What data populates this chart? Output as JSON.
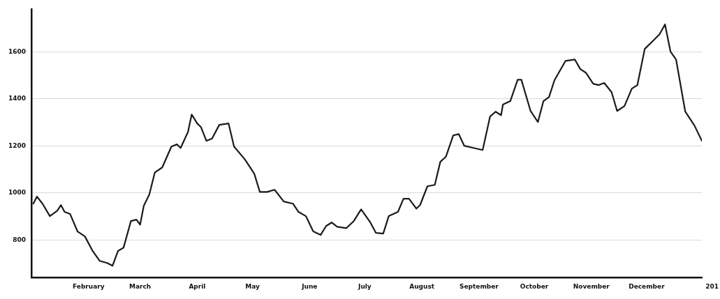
{
  "chart_data": {
    "type": "line",
    "x": [
      "--01-02",
      "--01-04",
      "--01-07",
      "--01-11",
      "--01-15",
      "--01-17",
      "--01-19",
      "--01-22",
      "--01-26",
      "--01-30",
      "--02-03",
      "--02-07",
      "--02-11",
      "--02-14",
      "--02-17",
      "--02-20",
      "--02-24",
      "--02-27",
      "--03-01",
      "--03-03",
      "--03-06",
      "--03-09",
      "--03-13",
      "--03-18",
      "--03-21",
      "--03-23",
      "--03-27",
      "--03-29",
      "--04-01",
      "--04-03",
      "--04-06",
      "--04-09",
      "--04-13",
      "--04-18",
      "--04-21",
      "--04-27",
      "--05-02",
      "--05-05",
      "--05-09",
      "--05-13",
      "--05-18",
      "--05-23",
      "--05-26",
      "--05-30",
      "--06-03",
      "--06-07",
      "--06-10",
      "--06-13",
      "--06-16",
      "--06-21",
      "--06-25",
      "--06-29",
      "--07-04",
      "--07-07",
      "--07-11",
      "--07-14",
      "--07-19",
      "--07-22",
      "--07-25",
      "--07-29",
      "--07-31",
      "--08-04",
      "--08-08",
      "--08-11",
      "--08-14",
      "--08-18",
      "--08-21",
      "--08-24",
      "--08-29",
      "--09-03",
      "--09-07",
      "--09-10",
      "--09-13",
      "--09-14",
      "--09-18",
      "--09-22",
      "--09-24",
      "--09-29",
      "--10-03",
      "--10-06",
      "--10-09",
      "--10-12",
      "--10-18",
      "--10-23",
      "--10-26",
      "--10-29",
      "--11-02",
      "--11-05",
      "--11-08",
      "--11-12",
      "--11-15",
      "--11-19",
      "--11-23",
      "--11-26",
      "--11-30",
      "--12-05",
      "--12-08",
      "--12-11",
      "--12-14",
      "--12-17",
      "--12-22",
      "--12-27",
      "--12-31"
    ],
    "series": [
      {
        "color": "#1a1a1a",
        "values": [
          954,
          984,
          954,
          901,
          924,
          948,
          919,
          910,
          836,
          815,
          756,
          711,
          702,
          690,
          753,
          767,
          880,
          886,
          865,
          945,
          993,
          1087,
          1108,
          1197,
          1206,
          1191,
          1259,
          1333,
          1295,
          1280,
          1221,
          1230,
          1289,
          1295,
          1197,
          1141,
          1081,
          1004,
          1004,
          1013,
          963,
          954,
          919,
          901,
          836,
          821,
          859,
          874,
          856,
          850,
          880,
          930,
          874,
          830,
          827,
          901,
          919,
          975,
          975,
          933,
          948,
          1028,
          1034,
          1132,
          1153,
          1244,
          1250,
          1200,
          1191,
          1182,
          1324,
          1345,
          1330,
          1375,
          1390,
          1481,
          1481,
          1348,
          1301,
          1390,
          1407,
          1479,
          1561,
          1567,
          1526,
          1511,
          1464,
          1458,
          1467,
          1428,
          1348,
          1369,
          1443,
          1458,
          1612,
          1650,
          1674,
          1716,
          1600,
          1567,
          1345,
          1286,
          1221
        ]
      }
    ],
    "xlim": [
      "--01-01",
      "--12-31"
    ],
    "xticks": [
      {
        "value": "--02-01",
        "label": "February"
      },
      {
        "value": "--03-01",
        "label": "March"
      },
      {
        "value": "--04-01",
        "label": "April"
      },
      {
        "value": "--05-01",
        "label": "May"
      },
      {
        "value": "--06-01",
        "label": "June"
      },
      {
        "value": "--07-01",
        "label": "July"
      },
      {
        "value": "--08-01",
        "label": "August"
      },
      {
        "value": "--09-01",
        "label": "September"
      },
      {
        "value": "--10-01",
        "label": "October"
      },
      {
        "value": "--11-01",
        "label": "November"
      },
      {
        "value": "--12-01",
        "label": "December"
      }
    ],
    "ylim": [
      640,
      1780
    ],
    "yticks": [
      800,
      1000,
      1200,
      1400,
      1600
    ],
    "annotations": [
      "201"
    ],
    "grid": "y",
    "marker": "none",
    "line_style": "solid"
  }
}
